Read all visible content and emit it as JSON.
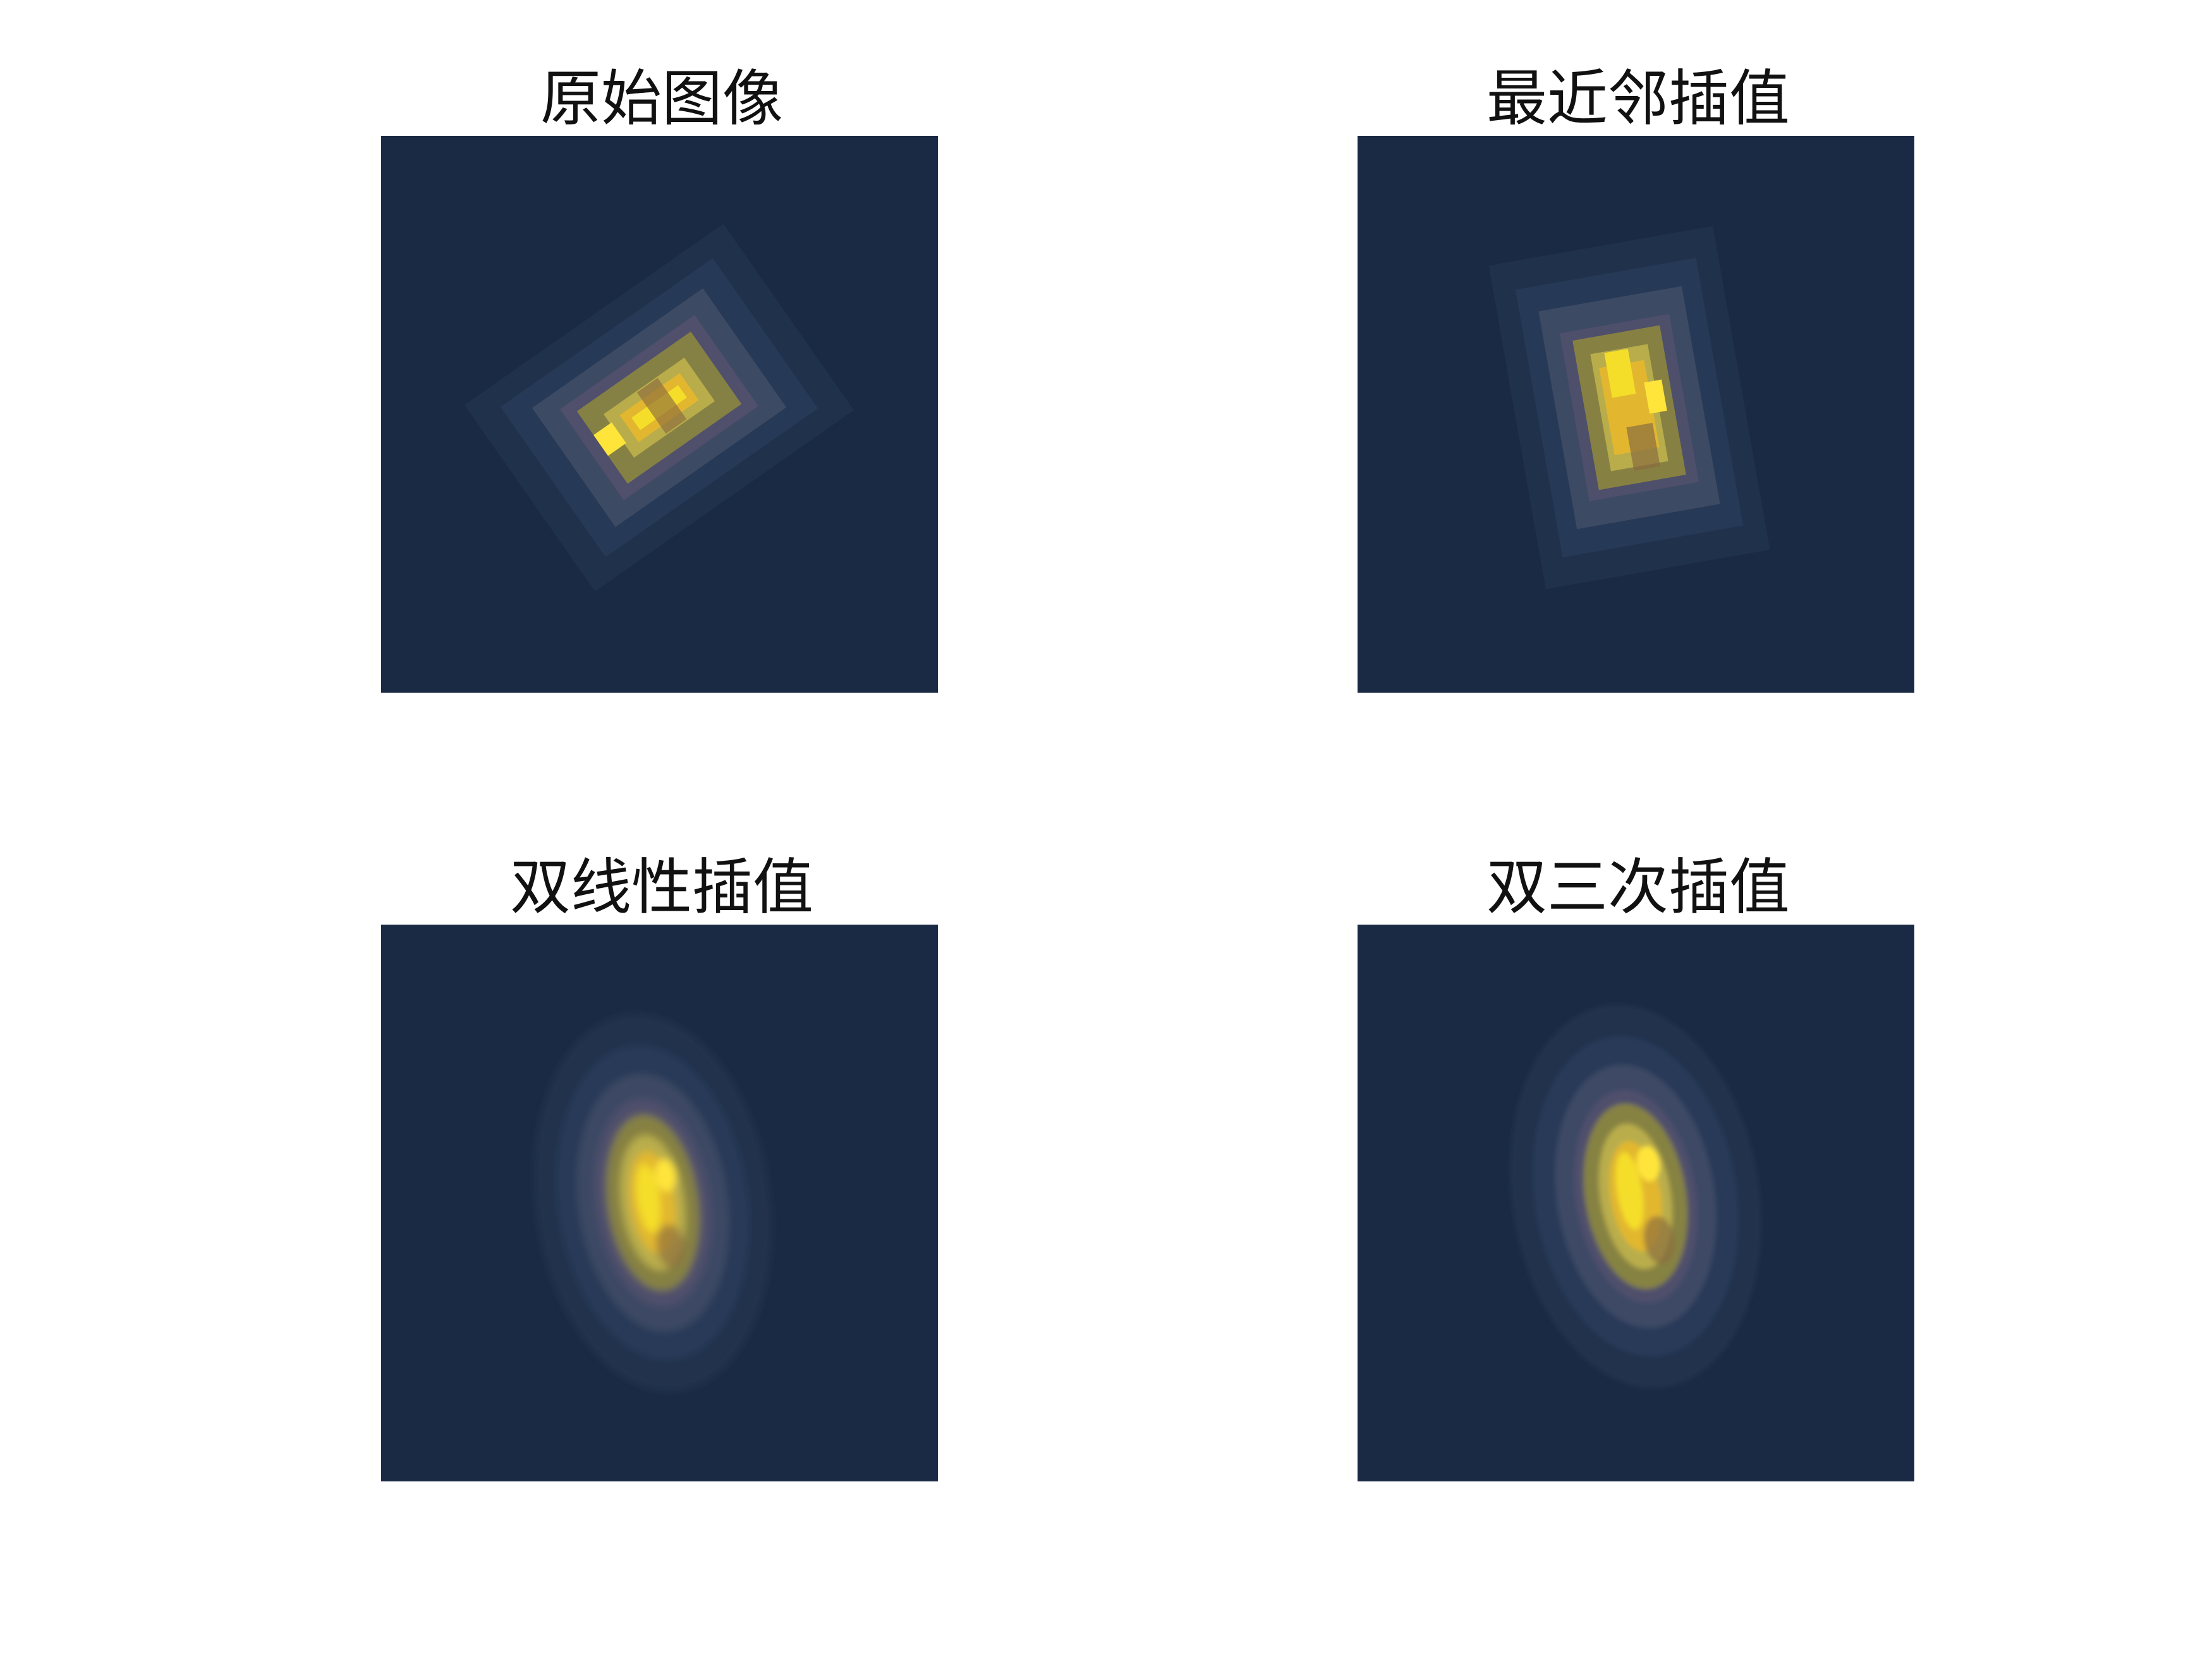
{
  "figure": {
    "background": "#ffffff",
    "panels": [
      {
        "id": "original",
        "title": "原始图像",
        "blob": {
          "bg": "#1b2a44",
          "angle": -35,
          "mode": "blocky",
          "label_kind": "original"
        }
      },
      {
        "id": "nearest",
        "title": "最近邻插值",
        "blob": {
          "bg": "#1b2a44",
          "angle": -10,
          "mode": "blocky",
          "label_kind": "nearest"
        }
      },
      {
        "id": "bilinear",
        "title": "双线性插值",
        "blob": {
          "bg": "#1b2a44",
          "angle": -8,
          "mode": "smooth",
          "label_kind": "bilinear"
        }
      },
      {
        "id": "bicubic",
        "title": "双三次插值",
        "blob": {
          "bg": "#1b2a44",
          "angle": -9,
          "mode": "smooth",
          "label_kind": "bicubic"
        }
      }
    ],
    "colors": {
      "dark_bg": "#1b2a44",
      "mid_dark": "#2a3a55",
      "slate": "#45506a",
      "olive": "#8b8640",
      "olive_light": "#b9ad4b",
      "gold": "#e2b72f",
      "yellow": "#f5de2a",
      "bright_yellow": "#ffe53a",
      "brown": "#8a6c3e",
      "purple_gray": "#5a5270"
    }
  }
}
